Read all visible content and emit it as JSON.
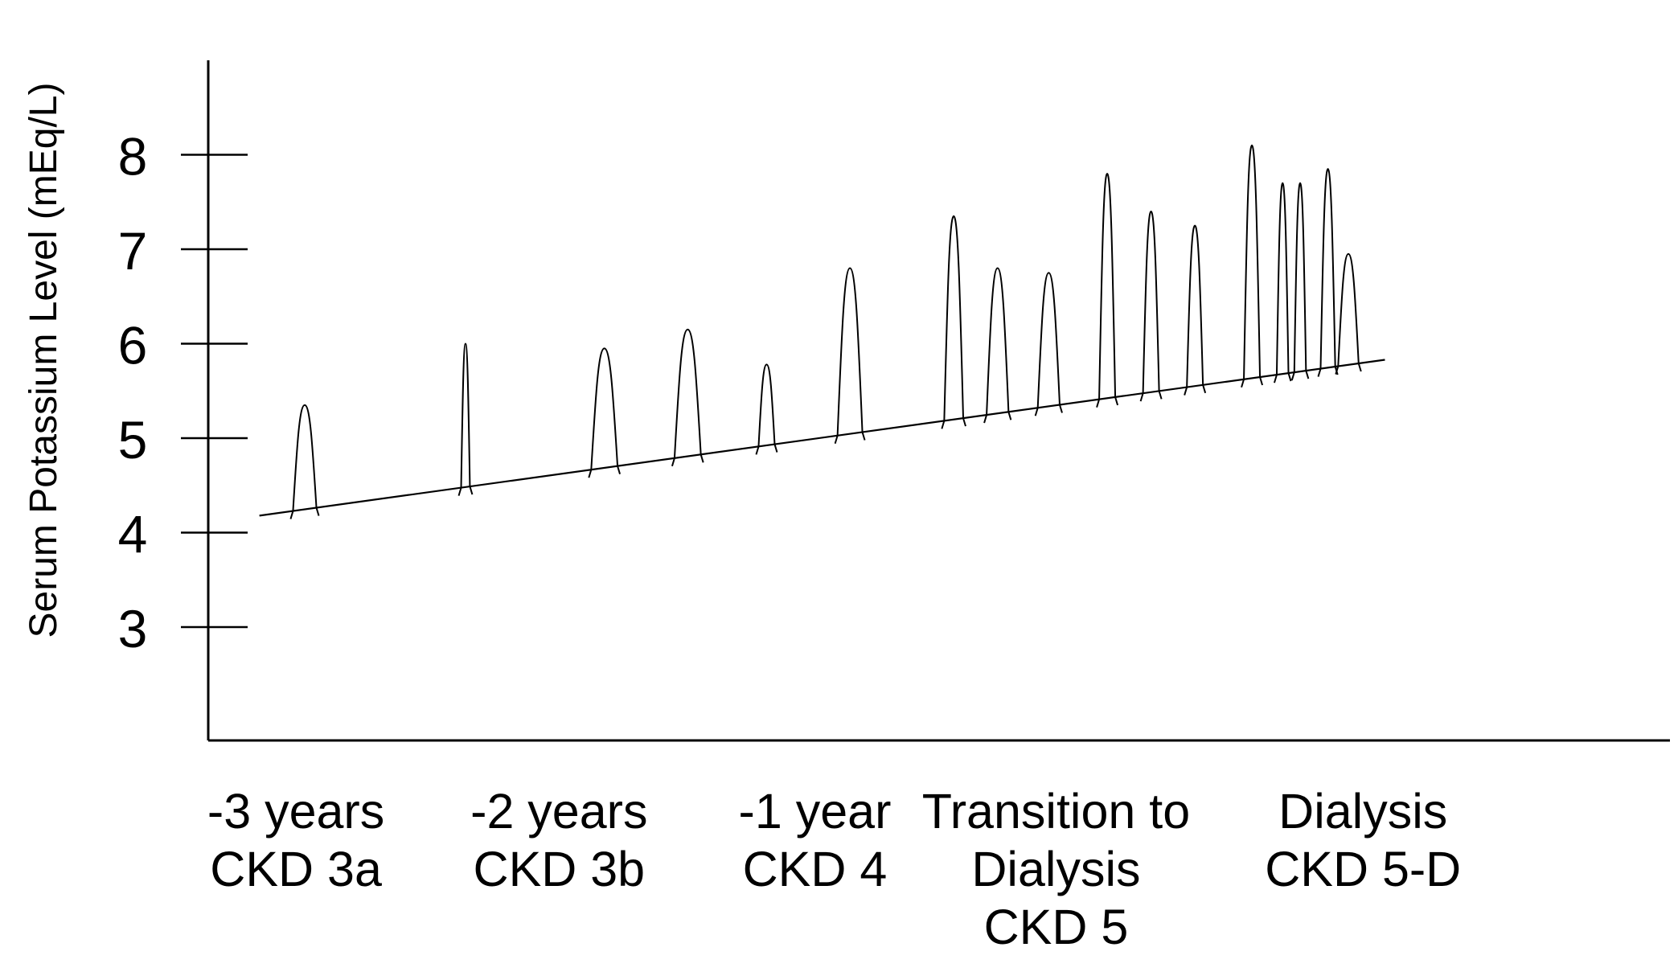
{
  "chart_data": {
    "type": "line",
    "title": "",
    "ylabel": "Serum Potassium Level (mEq/L)",
    "xlabel": "",
    "ylim": [
      1.8,
      9.0
    ],
    "y_ticks": [
      3,
      4,
      5,
      6,
      7,
      8
    ],
    "x_range": [
      0,
      100
    ],
    "categories": [
      {
        "x": 6,
        "lines": [
          "-3 years",
          "CKD 3a"
        ]
      },
      {
        "x": 24,
        "lines": [
          "-2 years",
          "CKD 3b"
        ]
      },
      {
        "x": 41.5,
        "lines": [
          "-1 year",
          "CKD 4"
        ]
      },
      {
        "x": 58,
        "lines": [
          "Transition to",
          "Dialysis",
          "CKD 5"
        ]
      },
      {
        "x": 79,
        "lines": [
          "Dialysis",
          "CKD 5-D"
        ]
      }
    ],
    "baseline": {
      "x": [
        3.5,
        80.5
      ],
      "y": [
        4.18,
        5.83
      ]
    },
    "spikes": [
      {
        "x": 6.6,
        "peak": 5.35,
        "width": 1.6
      },
      {
        "x": 17.6,
        "peak": 6.0,
        "width": 0.6
      },
      {
        "x": 27.1,
        "peak": 5.95,
        "width": 1.8
      },
      {
        "x": 32.8,
        "peak": 6.15,
        "width": 1.8
      },
      {
        "x": 38.2,
        "peak": 5.78,
        "width": 1.1
      },
      {
        "x": 43.9,
        "peak": 6.8,
        "width": 1.7
      },
      {
        "x": 51.0,
        "peak": 7.35,
        "width": 1.3
      },
      {
        "x": 54.0,
        "peak": 6.8,
        "width": 1.5
      },
      {
        "x": 57.5,
        "peak": 6.75,
        "width": 1.5
      },
      {
        "x": 61.5,
        "peak": 7.8,
        "width": 1.1
      },
      {
        "x": 64.5,
        "peak": 7.4,
        "width": 1.1
      },
      {
        "x": 67.5,
        "peak": 7.25,
        "width": 1.1
      },
      {
        "x": 71.4,
        "peak": 8.1,
        "width": 1.1
      },
      {
        "x": 73.5,
        "peak": 7.7,
        "width": 0.8
      },
      {
        "x": 74.7,
        "peak": 7.7,
        "width": 0.8
      },
      {
        "x": 76.6,
        "peak": 7.85,
        "width": 1.0
      },
      {
        "x": 78.0,
        "peak": 6.95,
        "width": 1.4
      }
    ]
  }
}
